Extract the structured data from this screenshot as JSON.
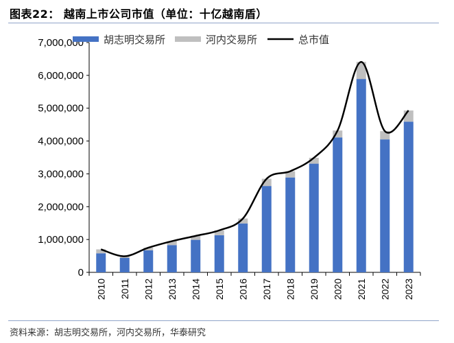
{
  "title": "图表22： 越南上市公司市值（单位：十亿越南盾）",
  "source": "资料来源：胡志明交易所，河内交易所，华泰研究",
  "chart_data": {
    "type": "bar",
    "stacked": true,
    "categories": [
      "2010",
      "2011",
      "2012",
      "2013",
      "2014",
      "2015",
      "2016",
      "2017",
      "2018",
      "2019",
      "2020",
      "2021",
      "2022",
      "2023"
    ],
    "series": [
      {
        "name": "胡志明交易所",
        "kind": "bar",
        "color": "#4472c4",
        "values": [
          580000,
          440000,
          670000,
          830000,
          990000,
          1130000,
          1490000,
          2630000,
          2890000,
          3310000,
          4110000,
          5890000,
          4050000,
          4590000
        ]
      },
      {
        "name": "河内交易所",
        "kind": "bar",
        "color": "#bfbfbf",
        "values": [
          120000,
          50000,
          80000,
          120000,
          120000,
          150000,
          150000,
          220000,
          190000,
          180000,
          210000,
          520000,
          250000,
          340000
        ]
      },
      {
        "name": "总市值",
        "kind": "line",
        "color": "#000000",
        "values": [
          700000,
          490000,
          750000,
          950000,
          1110000,
          1280000,
          1640000,
          2850000,
          3080000,
          3490000,
          4320000,
          6410000,
          4300000,
          4930000
        ]
      }
    ],
    "ylim": [
      0,
      7000000
    ],
    "yticks": [
      "0",
      "1,000,000",
      "2,000,000",
      "3,000,000",
      "4,000,000",
      "5,000,000",
      "6,000,000",
      "7,000,000"
    ],
    "ytick_values": [
      0,
      1000000,
      2000000,
      3000000,
      4000000,
      5000000,
      6000000,
      7000000
    ],
    "legend": "top",
    "grid": false
  }
}
